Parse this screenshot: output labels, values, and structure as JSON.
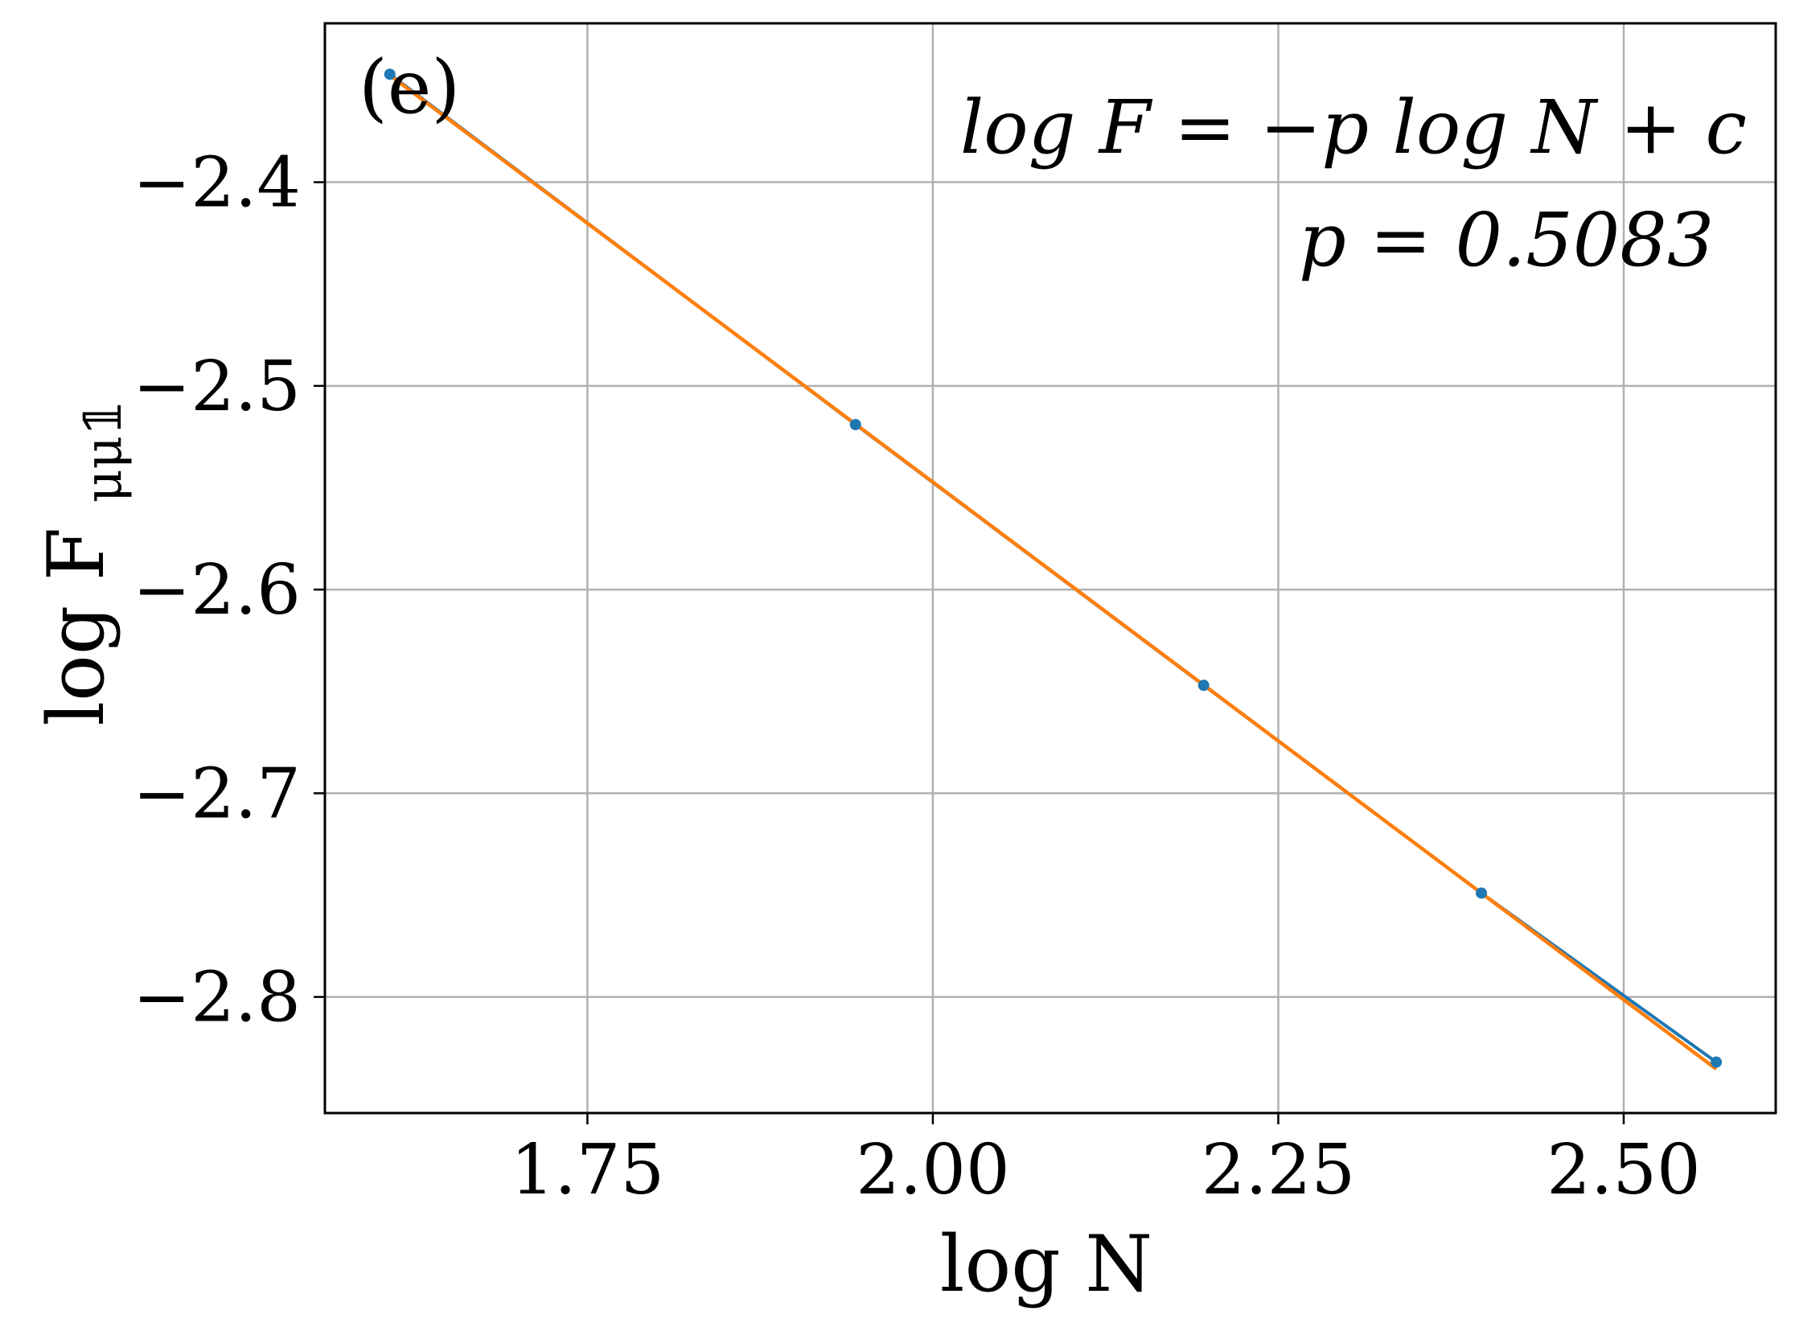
{
  "chart_data": {
    "type": "line",
    "panel_label": "(e)",
    "xlabel": "log N",
    "ylabel": "log F",
    "ylabel_subscript": "μμ𝟙",
    "xlim": [
      1.56,
      2.61
    ],
    "ylim": [
      -2.857,
      -2.322
    ],
    "xticks": [
      1.75,
      2.0,
      2.25,
      2.5
    ],
    "xtick_labels": [
      "1.75",
      "2.00",
      "2.25",
      "2.50"
    ],
    "yticks": [
      -2.8,
      -2.7,
      -2.6,
      -2.5,
      -2.4
    ],
    "ytick_labels": [
      "−2.8",
      "−2.7",
      "−2.6",
      "−2.5",
      "−2.4"
    ],
    "grid": true,
    "annotations": [
      "log F = −p log N + c",
      "p = 0.5083"
    ],
    "series": [
      {
        "kind": "data",
        "marker": "point",
        "color": "#1f77b4",
        "x": [
          1.607,
          1.944,
          2.196,
          2.397,
          2.567
        ],
        "y": [
          -2.347,
          -2.519,
          -2.647,
          -2.749,
          -2.832
        ]
      },
      {
        "kind": "fit",
        "color": "#ff7f0e",
        "x": [
          1.607,
          2.567
        ],
        "y": [
          -2.3475,
          -2.8354
        ]
      }
    ]
  }
}
